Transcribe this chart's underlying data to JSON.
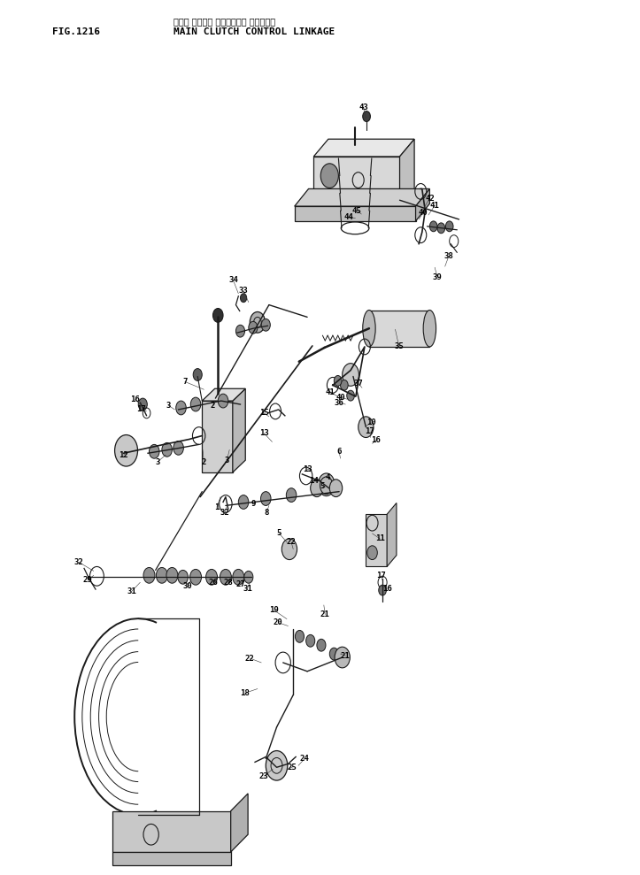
{
  "title_japanese": "メイン クラッチ コントロール リンケージ",
  "title_english": "MAIN CLUTCH CONTROL LINKAGE",
  "fig_label": "FIG.1216",
  "background_color": "#ffffff",
  "line_color": "#1a1a1a",
  "text_color": "#000000",
  "fig_width": 7.23,
  "fig_height": 9.89,
  "dpi": 100
}
